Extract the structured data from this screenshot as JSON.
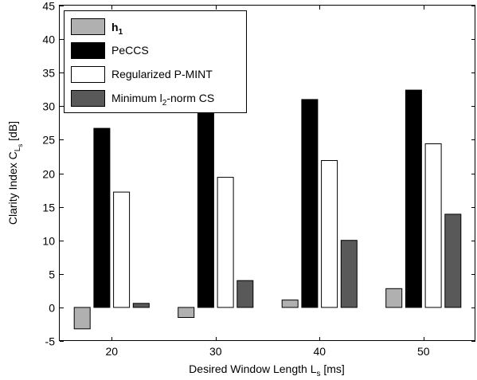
{
  "chart_data": {
    "type": "bar",
    "categories": [
      "20",
      "30",
      "40",
      "50"
    ],
    "series": [
      {
        "name": "h",
        "name_sub": "1",
        "color": "#b0b0b0",
        "values": [
          -3.2,
          -1.5,
          1.1,
          2.8
        ]
      },
      {
        "name": "PeCCS",
        "color": "#000000",
        "values": [
          26.7,
          29.4,
          31.0,
          32.4
        ]
      },
      {
        "name": "Regularized P-MINT",
        "color": "#ffffff",
        "values": [
          17.2,
          19.4,
          21.9,
          24.4
        ]
      },
      {
        "name": "Minimum l",
        "name_sub": "2",
        "name_tail": "-norm CS",
        "color": "#595959",
        "values": [
          0.6,
          4.0,
          10.0,
          13.9
        ]
      }
    ],
    "xlabel": "Desired Window Length L",
    "xlabel_sub": "s",
    "xlabel_tail": " [ms]",
    "ylabel": "Clarity Index C",
    "ylabel_sub": "L",
    "ylabel_subsub": "s",
    "ylabel_tail": " [dB]",
    "ylim": [
      -5,
      45
    ],
    "yticks": [
      -5,
      0,
      5,
      10,
      15,
      20,
      25,
      30,
      35,
      40,
      45
    ],
    "legend_position": "top-left",
    "grid": false
  }
}
